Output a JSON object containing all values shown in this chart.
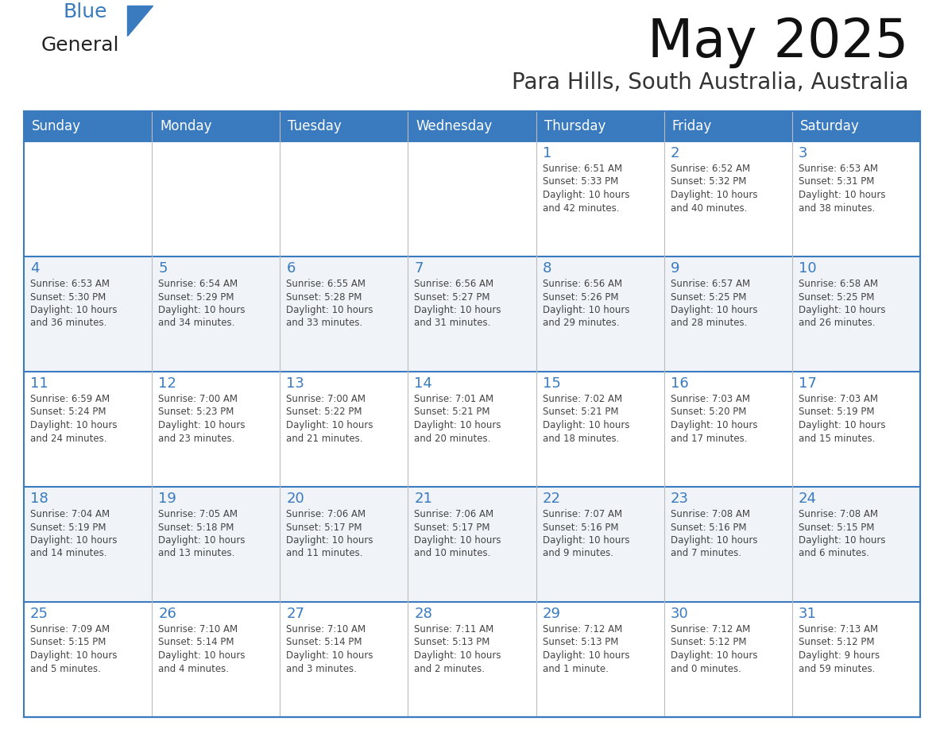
{
  "title": "May 2025",
  "subtitle": "Para Hills, South Australia, Australia",
  "header_color": "#3a7abf",
  "header_text_color": "#ffffff",
  "day_names": [
    "Sunday",
    "Monday",
    "Tuesday",
    "Wednesday",
    "Thursday",
    "Friday",
    "Saturday"
  ],
  "cell_bg_color": "#ffffff",
  "cell_alt_bg_color": "#f0f4f8",
  "border_color": "#3a7abf",
  "day_number_color": "#3a7abf",
  "text_color": "#444444",
  "weeks": [
    [
      {
        "day": "",
        "info": ""
      },
      {
        "day": "",
        "info": ""
      },
      {
        "day": "",
        "info": ""
      },
      {
        "day": "",
        "info": ""
      },
      {
        "day": "1",
        "info": "Sunrise: 6:51 AM\nSunset: 5:33 PM\nDaylight: 10 hours\nand 42 minutes."
      },
      {
        "day": "2",
        "info": "Sunrise: 6:52 AM\nSunset: 5:32 PM\nDaylight: 10 hours\nand 40 minutes."
      },
      {
        "day": "3",
        "info": "Sunrise: 6:53 AM\nSunset: 5:31 PM\nDaylight: 10 hours\nand 38 minutes."
      }
    ],
    [
      {
        "day": "4",
        "info": "Sunrise: 6:53 AM\nSunset: 5:30 PM\nDaylight: 10 hours\nand 36 minutes."
      },
      {
        "day": "5",
        "info": "Sunrise: 6:54 AM\nSunset: 5:29 PM\nDaylight: 10 hours\nand 34 minutes."
      },
      {
        "day": "6",
        "info": "Sunrise: 6:55 AM\nSunset: 5:28 PM\nDaylight: 10 hours\nand 33 minutes."
      },
      {
        "day": "7",
        "info": "Sunrise: 6:56 AM\nSunset: 5:27 PM\nDaylight: 10 hours\nand 31 minutes."
      },
      {
        "day": "8",
        "info": "Sunrise: 6:56 AM\nSunset: 5:26 PM\nDaylight: 10 hours\nand 29 minutes."
      },
      {
        "day": "9",
        "info": "Sunrise: 6:57 AM\nSunset: 5:25 PM\nDaylight: 10 hours\nand 28 minutes."
      },
      {
        "day": "10",
        "info": "Sunrise: 6:58 AM\nSunset: 5:25 PM\nDaylight: 10 hours\nand 26 minutes."
      }
    ],
    [
      {
        "day": "11",
        "info": "Sunrise: 6:59 AM\nSunset: 5:24 PM\nDaylight: 10 hours\nand 24 minutes."
      },
      {
        "day": "12",
        "info": "Sunrise: 7:00 AM\nSunset: 5:23 PM\nDaylight: 10 hours\nand 23 minutes."
      },
      {
        "day": "13",
        "info": "Sunrise: 7:00 AM\nSunset: 5:22 PM\nDaylight: 10 hours\nand 21 minutes."
      },
      {
        "day": "14",
        "info": "Sunrise: 7:01 AM\nSunset: 5:21 PM\nDaylight: 10 hours\nand 20 minutes."
      },
      {
        "day": "15",
        "info": "Sunrise: 7:02 AM\nSunset: 5:21 PM\nDaylight: 10 hours\nand 18 minutes."
      },
      {
        "day": "16",
        "info": "Sunrise: 7:03 AM\nSunset: 5:20 PM\nDaylight: 10 hours\nand 17 minutes."
      },
      {
        "day": "17",
        "info": "Sunrise: 7:03 AM\nSunset: 5:19 PM\nDaylight: 10 hours\nand 15 minutes."
      }
    ],
    [
      {
        "day": "18",
        "info": "Sunrise: 7:04 AM\nSunset: 5:19 PM\nDaylight: 10 hours\nand 14 minutes."
      },
      {
        "day": "19",
        "info": "Sunrise: 7:05 AM\nSunset: 5:18 PM\nDaylight: 10 hours\nand 13 minutes."
      },
      {
        "day": "20",
        "info": "Sunrise: 7:06 AM\nSunset: 5:17 PM\nDaylight: 10 hours\nand 11 minutes."
      },
      {
        "day": "21",
        "info": "Sunrise: 7:06 AM\nSunset: 5:17 PM\nDaylight: 10 hours\nand 10 minutes."
      },
      {
        "day": "22",
        "info": "Sunrise: 7:07 AM\nSunset: 5:16 PM\nDaylight: 10 hours\nand 9 minutes."
      },
      {
        "day": "23",
        "info": "Sunrise: 7:08 AM\nSunset: 5:16 PM\nDaylight: 10 hours\nand 7 minutes."
      },
      {
        "day": "24",
        "info": "Sunrise: 7:08 AM\nSunset: 5:15 PM\nDaylight: 10 hours\nand 6 minutes."
      }
    ],
    [
      {
        "day": "25",
        "info": "Sunrise: 7:09 AM\nSunset: 5:15 PM\nDaylight: 10 hours\nand 5 minutes."
      },
      {
        "day": "26",
        "info": "Sunrise: 7:10 AM\nSunset: 5:14 PM\nDaylight: 10 hours\nand 4 minutes."
      },
      {
        "day": "27",
        "info": "Sunrise: 7:10 AM\nSunset: 5:14 PM\nDaylight: 10 hours\nand 3 minutes."
      },
      {
        "day": "28",
        "info": "Sunrise: 7:11 AM\nSunset: 5:13 PM\nDaylight: 10 hours\nand 2 minutes."
      },
      {
        "day": "29",
        "info": "Sunrise: 7:12 AM\nSunset: 5:13 PM\nDaylight: 10 hours\nand 1 minute."
      },
      {
        "day": "30",
        "info": "Sunrise: 7:12 AM\nSunset: 5:12 PM\nDaylight: 10 hours\nand 0 minutes."
      },
      {
        "day": "31",
        "info": "Sunrise: 7:13 AM\nSunset: 5:12 PM\nDaylight: 9 hours\nand 59 minutes."
      }
    ]
  ],
  "logo_text_general": "General",
  "logo_text_blue": "Blue",
  "logo_triangle_color": "#3a7abf",
  "logo_general_color": "#222222"
}
